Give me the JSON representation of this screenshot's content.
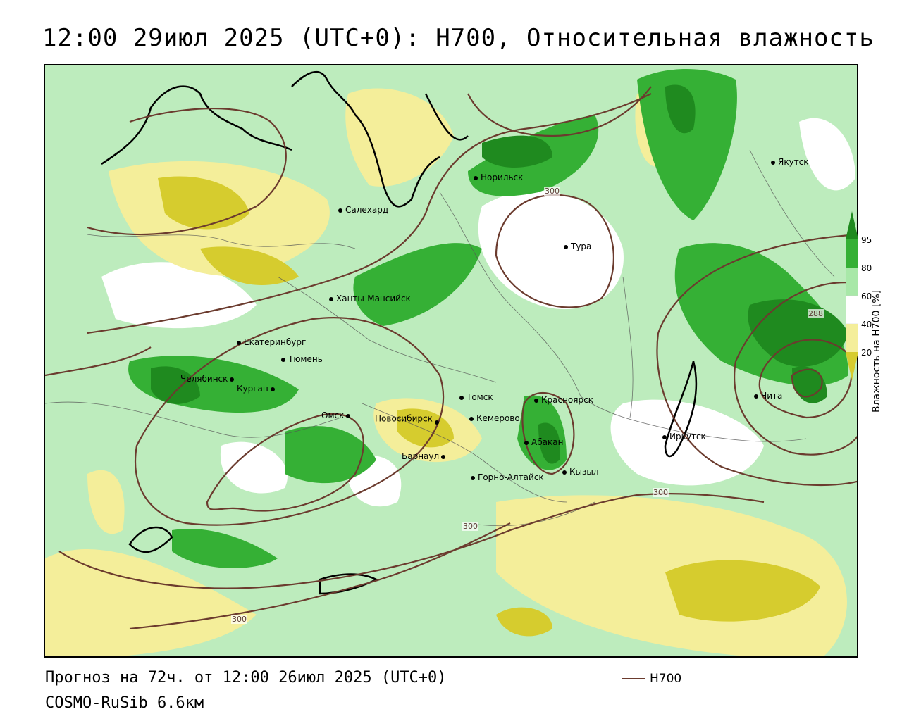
{
  "title": "12:00 29июл 2025 (UTC+0): H700, Относительная влажность",
  "footer": {
    "forecast": "Прогноз на 72ч. от 12:00 26июл 2025 (UTC+0)",
    "model": "COSMO-RuSib 6.6км",
    "contour_key": "H700"
  },
  "legend": {
    "title": "Влажность на H700 [%]",
    "ticks": [
      "95",
      "80",
      "60",
      "40",
      "20"
    ],
    "colors": {
      "c95": "#1f8a1f",
      "c80": "#35b035",
      "c60": "#a8e8a8",
      "c40": "#ffffff",
      "c20": "#f4ee9a",
      "c0": "#d6cc2e"
    }
  },
  "contour_labels": [
    "300",
    "300",
    "300",
    "288",
    "300"
  ],
  "cities": [
    {
      "name": "Якутск"
    },
    {
      "name": "Норильск"
    },
    {
      "name": "Салехард"
    },
    {
      "name": "Тура"
    },
    {
      "name": "Ханты-Мансийск"
    },
    {
      "name": "Екатеринбург"
    },
    {
      "name": "Тюмень"
    },
    {
      "name": "Челябинск"
    },
    {
      "name": "Курган"
    },
    {
      "name": "Томск"
    },
    {
      "name": "Красноярск"
    },
    {
      "name": "Омск"
    },
    {
      "name": "Новосибирск"
    },
    {
      "name": "Кемерово"
    },
    {
      "name": "Абакан"
    },
    {
      "name": "Барнаул"
    },
    {
      "name": "Горно-Алтайск"
    },
    {
      "name": "Кызыл"
    },
    {
      "name": "Иркутск"
    },
    {
      "name": "Чита"
    }
  ]
}
